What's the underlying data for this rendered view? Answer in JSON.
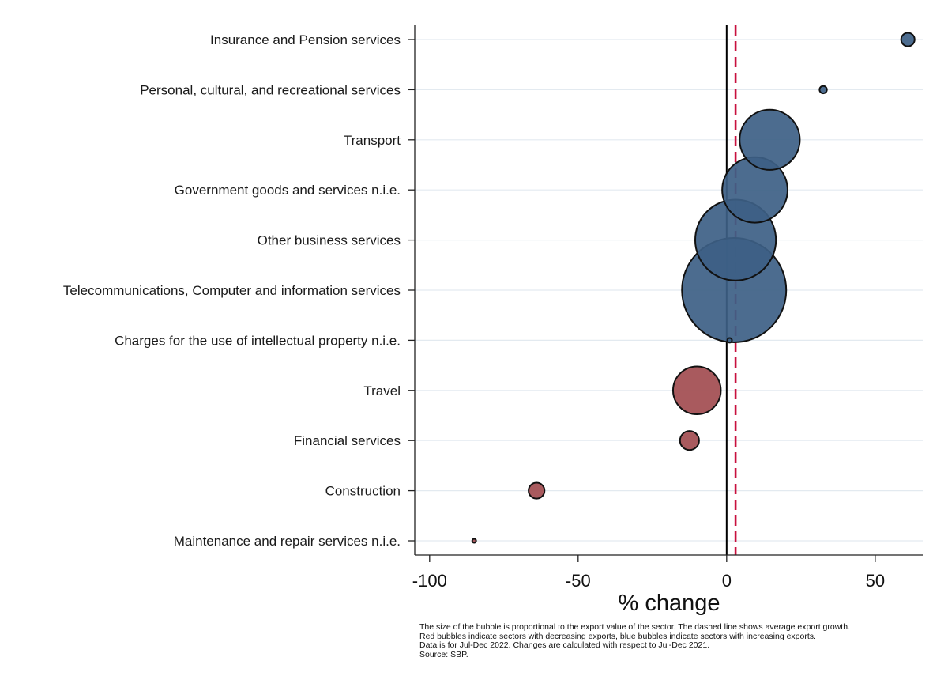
{
  "chart_data": {
    "type": "scatter",
    "subtype": "bubble",
    "xlabel": "% change",
    "xlim": [
      -105,
      66
    ],
    "xticks": [
      -100,
      -50,
      0,
      50
    ],
    "xtick_labels": [
      "-100",
      "-50",
      "0",
      "50"
    ],
    "grid": "horizontal",
    "reference_lines": [
      {
        "x": 0,
        "style": "solid",
        "color": "#000000"
      },
      {
        "x": 3,
        "style": "dashed",
        "color": "#c8103e",
        "meaning": "average export growth"
      }
    ],
    "colors": {
      "increase": "#3d5f86",
      "decrease": "#a24c50"
    },
    "categories": [
      "Insurance and Pension services",
      "Personal, cultural, and recreational services",
      "Transport",
      "Government goods and services n.i.e.",
      "Other business services",
      "Telecommunications, Computer and information services",
      "Charges for the use of intellectual property n.i.e.",
      "Travel",
      "Financial services",
      "Construction",
      "Maintenance and repair services n.i.e."
    ],
    "values": [
      61,
      32.5,
      14.5,
      9.5,
      3,
      2.5,
      1,
      -10,
      -12.5,
      -64,
      -85
    ],
    "bubble_size": [
      5,
      1.5,
      100,
      118,
      180,
      300,
      0.6,
      63,
      10,
      7,
      0.2
    ],
    "direction": [
      "increase",
      "increase",
      "increase",
      "increase",
      "increase",
      "increase",
      "increase",
      "decrease",
      "decrease",
      "decrease",
      "decrease"
    ]
  },
  "notes": [
    "The size of the bubble is proportional to the export value of the sector. The dashed line shows average export growth.",
    "Red bubbles indicate sectors with decreasing exports, blue bubbles indicate sectors with increasing exports.",
    "Data is for Jul-Dec 2022. Changes are calculated with respect to Jul-Dec 2021.",
    "Source: SBP."
  ]
}
